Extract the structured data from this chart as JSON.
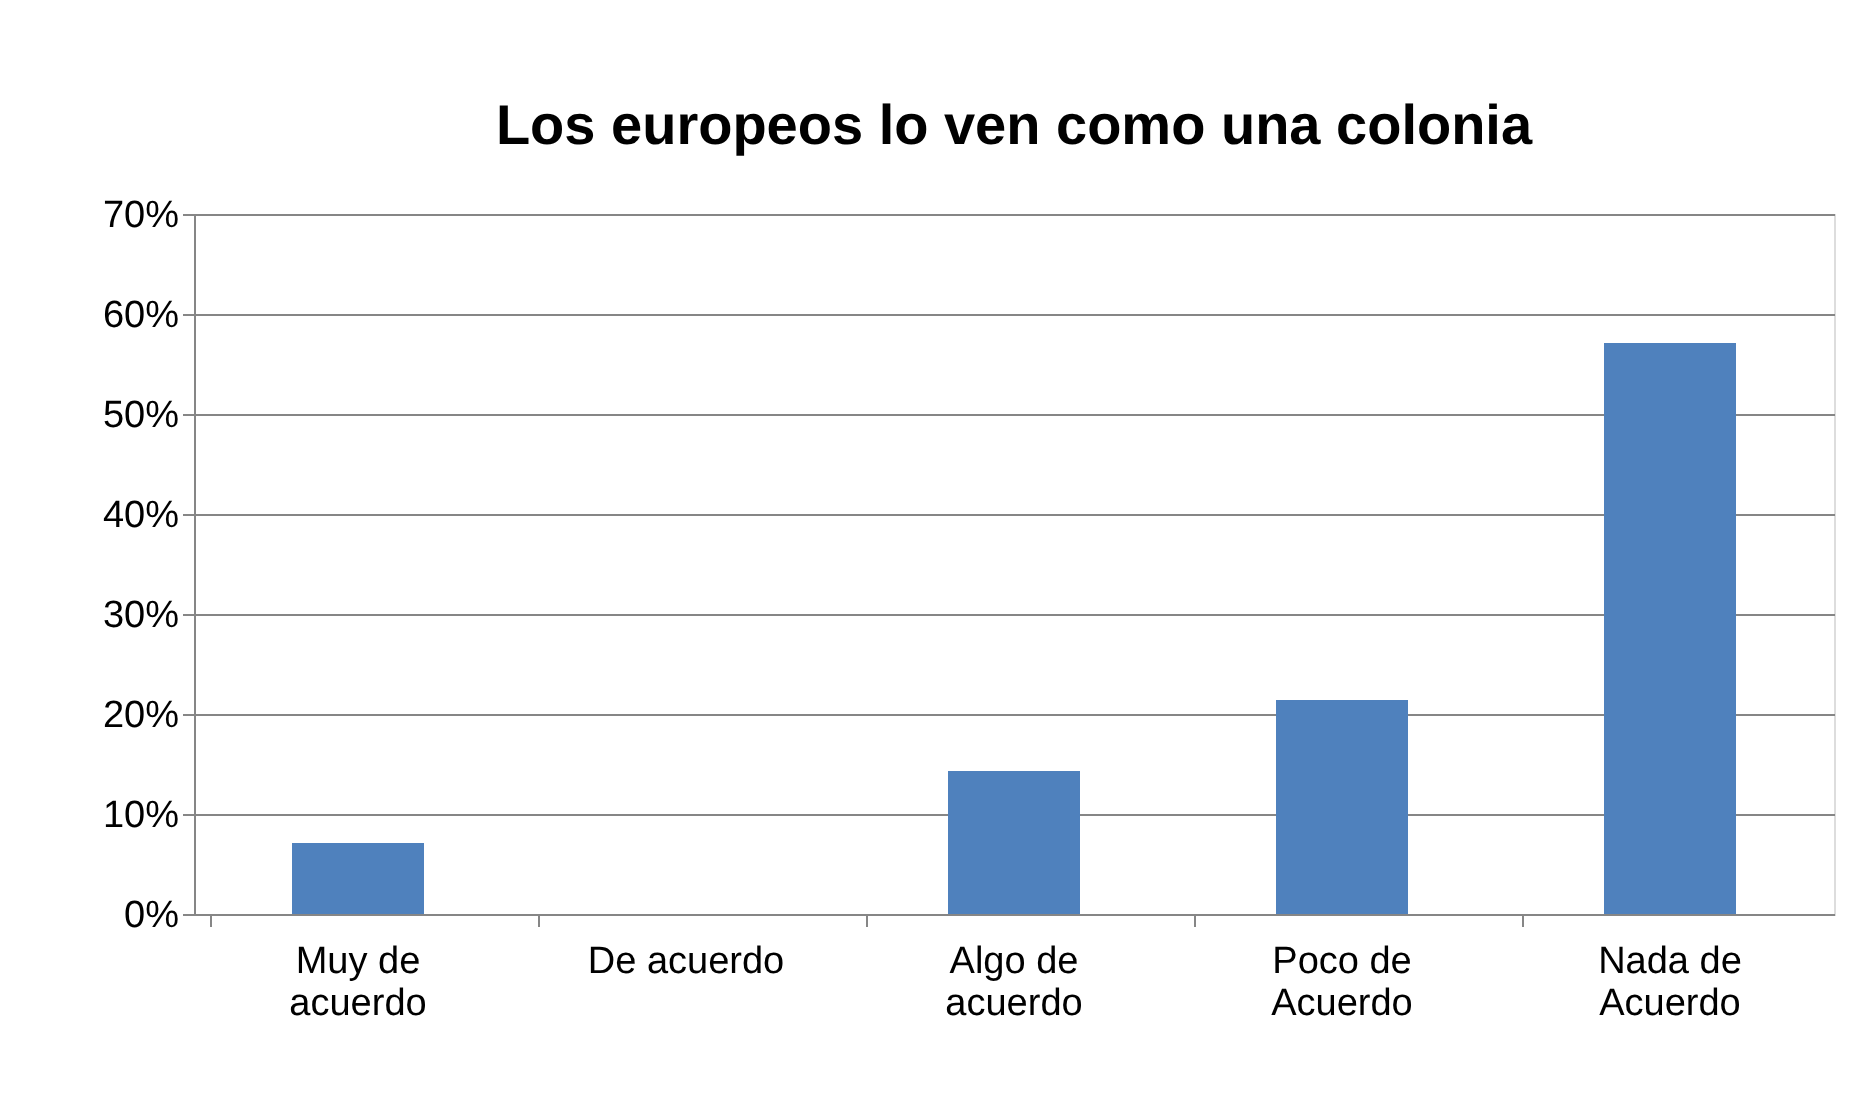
{
  "chart_data": {
    "type": "bar",
    "title": "Los europeos lo ven como una colonia",
    "categories": [
      "Muy de acuerdo",
      "De acuerdo",
      "Algo de acuerdo",
      "Poco de Acuerdo",
      "Nada de Acuerdo"
    ],
    "values": [
      7.1,
      0,
      14.3,
      21.4,
      57.1
    ],
    "color": "#4f81bd",
    "ylim": [
      0,
      70
    ],
    "yticks": [
      {
        "value": 0,
        "label": "0%"
      },
      {
        "value": 10,
        "label": "10%"
      },
      {
        "value": 20,
        "label": "20%"
      },
      {
        "value": 30,
        "label": "30%"
      },
      {
        "value": 40,
        "label": "40%"
      },
      {
        "value": 50,
        "label": "50%"
      },
      {
        "value": 60,
        "label": "60%"
      },
      {
        "value": 70,
        "label": "70%"
      }
    ],
    "grid": "y"
  }
}
